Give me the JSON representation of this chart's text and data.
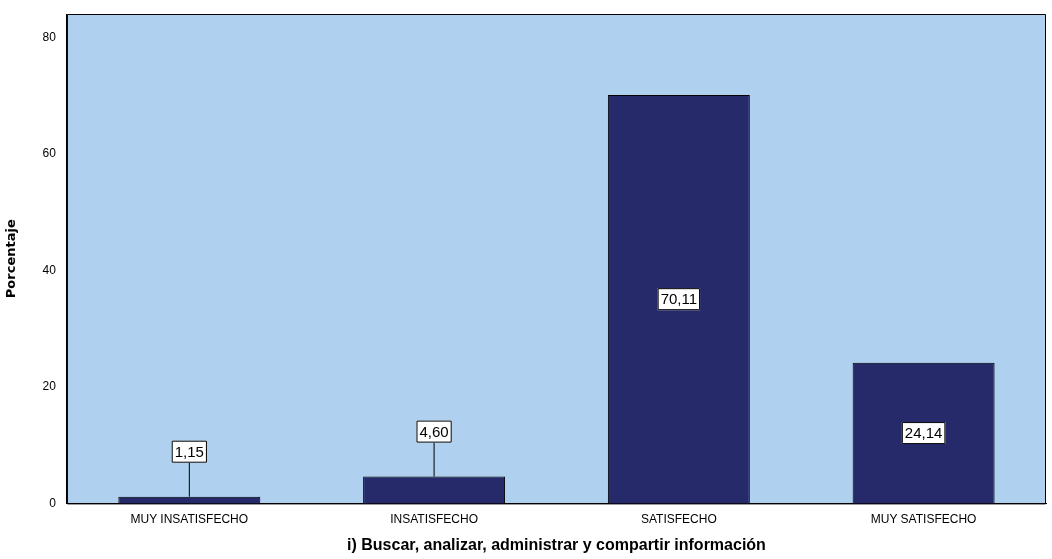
{
  "chart_data": {
    "type": "bar",
    "xlabel": "i) Buscar, analizar, administrar y compartir información",
    "ylabel": "Porcentaje",
    "categories": [
      "MUY INSATISFECHO",
      "INSATISFECHO",
      "SATISFECHO",
      "MUY SATISFECHO"
    ],
    "values": [
      1.15,
      4.6,
      70.11,
      24.14
    ],
    "value_labels": [
      "1,15",
      "4,60",
      "70,11",
      "24,14"
    ],
    "color": "#262a6b",
    "ylim": [
      0,
      84
    ],
    "yticks": [
      0,
      20,
      40,
      60,
      80
    ],
    "grid": false,
    "legend": false
  }
}
